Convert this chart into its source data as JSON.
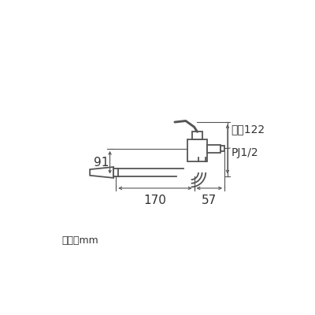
{
  "bg_color": "#ffffff",
  "line_color": "#555555",
  "text_color": "#333333",
  "unit_text": "単位：mm",
  "label_122": "最高122",
  "label_pj": "PJ1/2",
  "label_91": "91",
  "label_170": "170",
  "label_57": "57",
  "figsize": [
    4.0,
    4.0
  ],
  "dpi": 100
}
